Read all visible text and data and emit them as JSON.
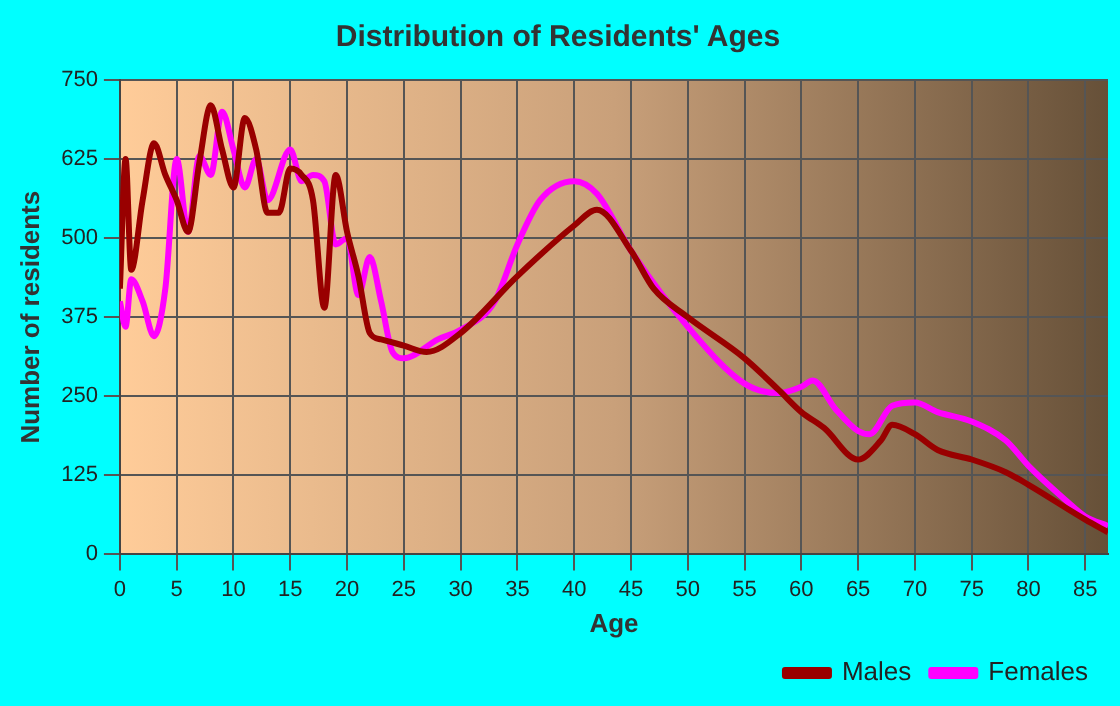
{
  "chart_data": {
    "type": "line",
    "title": "Distribution of Residents' Ages",
    "xlabel": "Age",
    "ylabel": "Number of residents",
    "xlim": [
      0,
      87
    ],
    "xticks": [
      0,
      5,
      10,
      15,
      20,
      25,
      30,
      35,
      40,
      45,
      50,
      55,
      60,
      65,
      70,
      75,
      80,
      85
    ],
    "ylim": [
      0,
      750
    ],
    "yticks": [
      0,
      125,
      250,
      375,
      500,
      625,
      750
    ],
    "grid": true,
    "legend": "bottom",
    "marker": "none",
    "line_style": "solid",
    "series": [
      {
        "name": "Males",
        "color": "#990000",
        "x": [
          0,
          0.5,
          1,
          2,
          3,
          4,
          5,
          6,
          7,
          8,
          9,
          10,
          11,
          12,
          13,
          14,
          15,
          16,
          17,
          18,
          19,
          20,
          21,
          22,
          23,
          25,
          27,
          30,
          35,
          40,
          42,
          45,
          47,
          50,
          55,
          58,
          60,
          62,
          65,
          67,
          68,
          70,
          72,
          75,
          78,
          80,
          85,
          87
        ],
        "values": [
          420,
          625,
          450,
          560,
          650,
          600,
          560,
          510,
          620,
          710,
          640,
          580,
          690,
          640,
          540,
          540,
          610,
          600,
          560,
          390,
          600,
          510,
          440,
          350,
          340,
          330,
          320,
          350,
          440,
          520,
          545,
          480,
          420,
          375,
          310,
          260,
          225,
          200,
          150,
          180,
          205,
          190,
          165,
          150,
          130,
          110,
          55,
          35
        ]
      },
      {
        "name": "Females",
        "color": "#ff00ff",
        "x": [
          0,
          0.5,
          1,
          2,
          3,
          4,
          5,
          6,
          7,
          8,
          9,
          10,
          11,
          12,
          13,
          15,
          16,
          17,
          18,
          19,
          20,
          21,
          22,
          23,
          24,
          25,
          28,
          30,
          33,
          35,
          37,
          40,
          42,
          45,
          50,
          55,
          58,
          60,
          61,
          63,
          65,
          66,
          68,
          70,
          72,
          75,
          78,
          80,
          83,
          85,
          87
        ],
        "values": [
          400,
          360,
          435,
          400,
          345,
          420,
          625,
          510,
          630,
          600,
          700,
          640,
          580,
          625,
          560,
          640,
          590,
          600,
          590,
          490,
          500,
          410,
          470,
          400,
          320,
          310,
          340,
          355,
          400,
          490,
          560,
          590,
          570,
          480,
          360,
          270,
          255,
          265,
          275,
          230,
          195,
          190,
          235,
          240,
          225,
          210,
          180,
          140,
          90,
          60,
          45
        ]
      }
    ]
  }
}
